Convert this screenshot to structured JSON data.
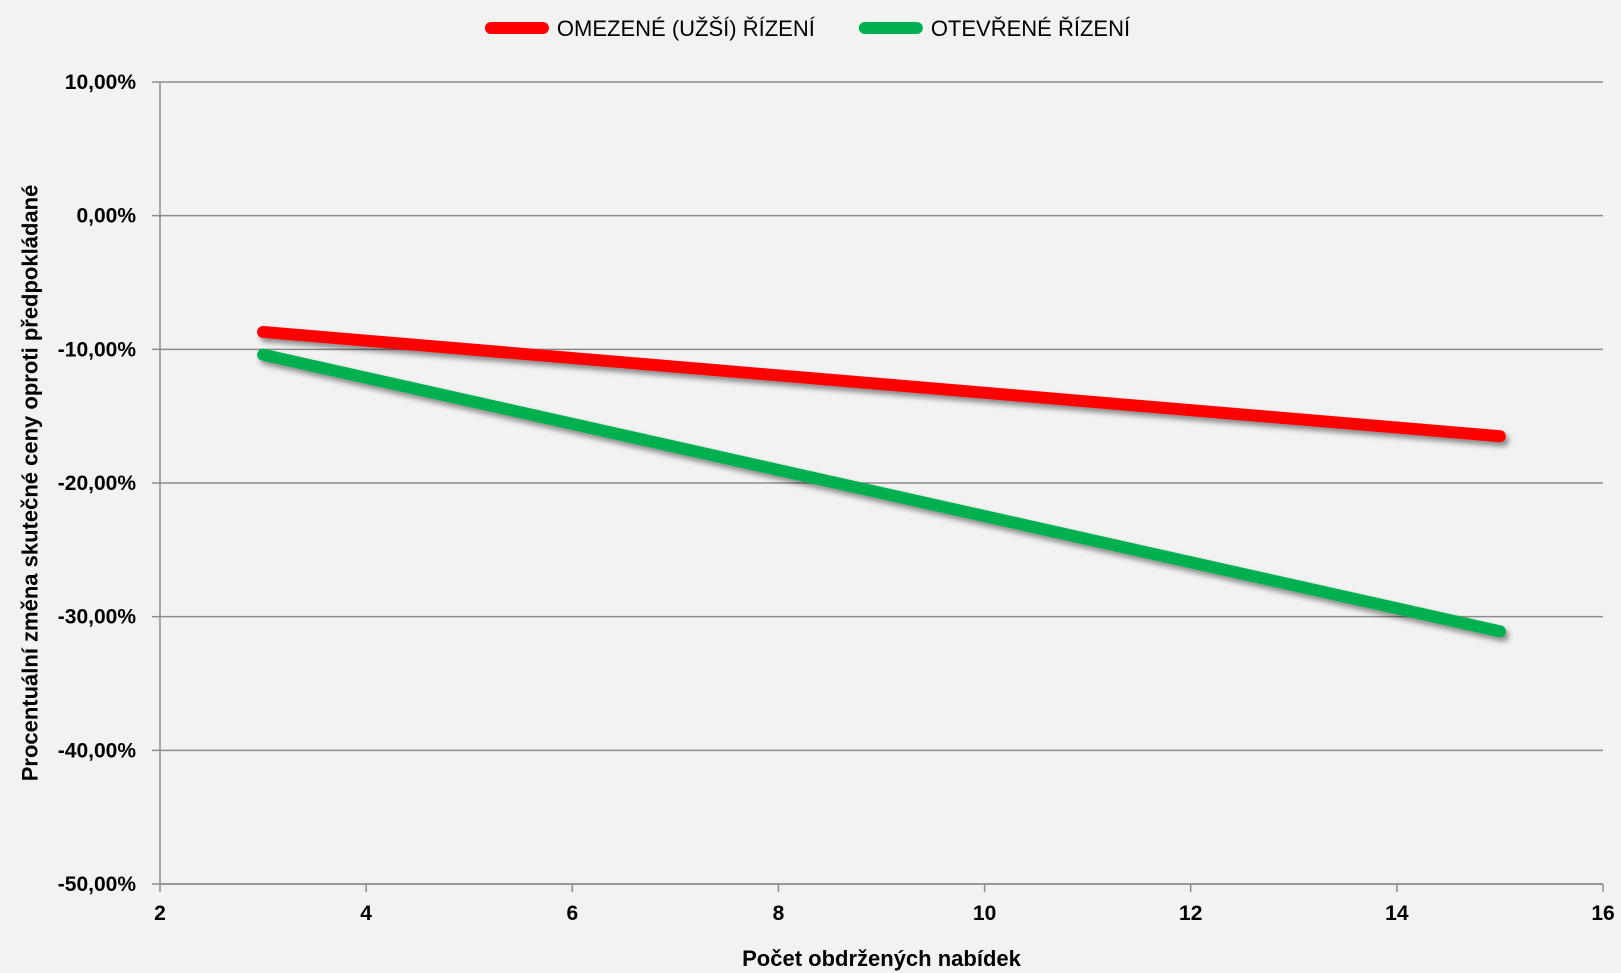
{
  "chart_data": {
    "type": "line",
    "xlabel": "Počet obdržených nabídek",
    "ylabel": "Procentuální změna skutečné ceny oproti předpokládané",
    "xlim": [
      2,
      16
    ],
    "ylim": [
      -50,
      10
    ],
    "x_ticks": [
      2,
      4,
      6,
      8,
      10,
      12,
      14,
      16
    ],
    "x_tick_labels": [
      "2",
      "4",
      "6",
      "8",
      "10",
      "12",
      "14",
      "16"
    ],
    "y_ticks": [
      10,
      0,
      -10,
      -20,
      -30,
      -40,
      -50
    ],
    "y_tick_labels": [
      "10,00%",
      "0,00%",
      "-10,00%",
      "-20,00%",
      "-30,00%",
      "-40,00%",
      "-50,00%"
    ],
    "grid": "horizontal",
    "legend_position": "top",
    "series": [
      {
        "name": "OMEZENÉ (UŽŠÍ) ŘÍZENÍ",
        "color": "#ff0000",
        "x": [
          3,
          15
        ],
        "y": [
          -8.7,
          -16.5
        ]
      },
      {
        "name": "OTEVŘENÉ ŘÍZENÍ",
        "color": "#00b050",
        "x": [
          3,
          15
        ],
        "y": [
          -10.4,
          -31.1
        ]
      }
    ]
  }
}
